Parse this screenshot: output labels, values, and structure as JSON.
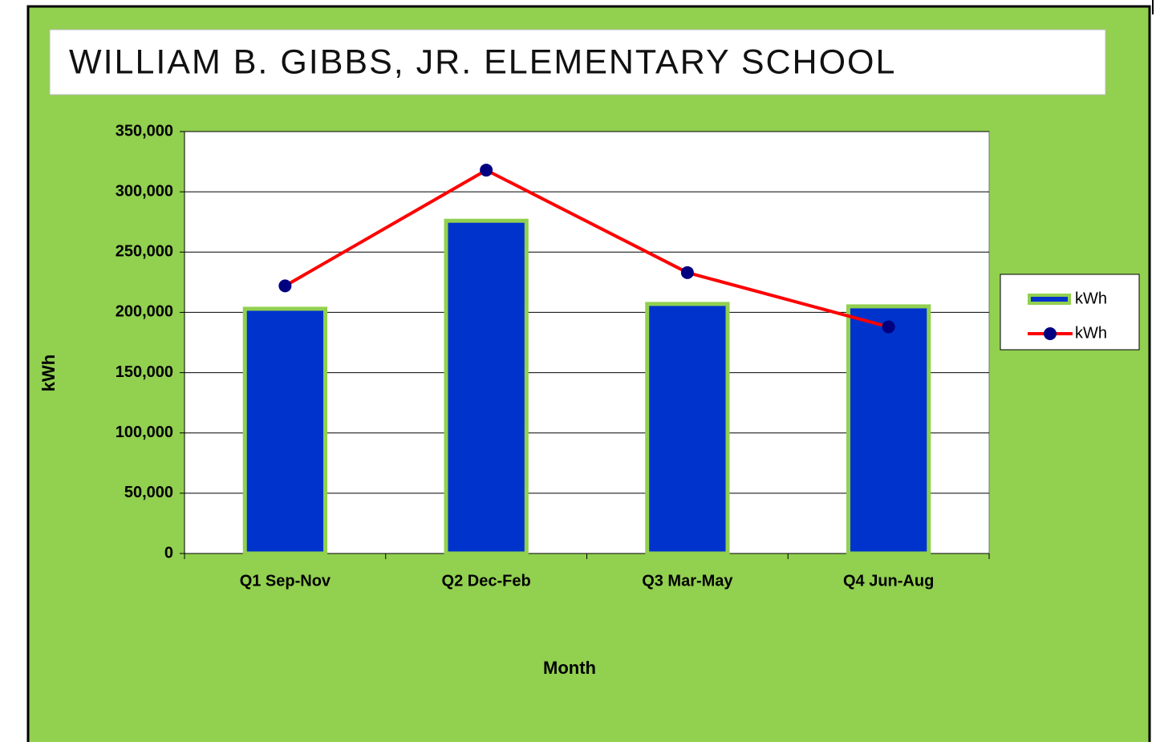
{
  "chart_data": {
    "type": "bar",
    "title": "WILLIAM B. GIBBS, JR. ELEMENTARY SCHOOL",
    "x_label": "Month",
    "y_label": "kWh",
    "categories": [
      "Q1 Sep-Nov",
      "Q2 Dec-Feb",
      "Q3 Mar-May",
      "Q4 Jun-Aug"
    ],
    "series": [
      {
        "name": "kWh",
        "type": "bar",
        "color": "#0033cc",
        "edge_color": "#92d050",
        "values": [
          203000,
          276000,
          207000,
          205000
        ]
      },
      {
        "name": "kWh",
        "type": "line",
        "color": "#ff0000",
        "marker_color": "#000080",
        "values": [
          222000,
          318000,
          233000,
          188000
        ]
      }
    ],
    "ylim": [
      0,
      350000
    ],
    "yticks": [
      0,
      {
        "value": 50000,
        "label": "50,000"
      },
      {
        "value": 100000,
        "label": "100,000"
      },
      {
        "value": 150000,
        "label": "150,000"
      },
      {
        "value": 200000,
        "label": "200,000"
      },
      {
        "value": 250000,
        "label": "250,000"
      },
      {
        "value": 300000,
        "label": "300,000"
      },
      {
        "value": 350000,
        "label": "350,000"
      }
    ],
    "grid": true,
    "legend": "right"
  }
}
